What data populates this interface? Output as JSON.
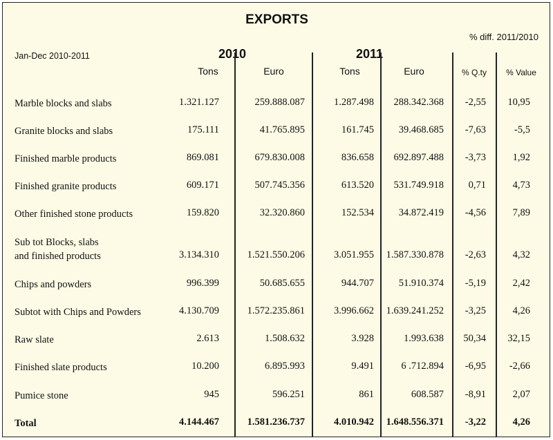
{
  "title": "EXPORTS",
  "period": "Jan-Dec 2010-2011",
  "pct_title": "% diff. 2011/2010",
  "years": [
    "2010",
    "2011"
  ],
  "columns": [
    "Tons",
    "Euro",
    "Tons",
    "Euro",
    "% Q.ty",
    "% Value"
  ],
  "rows": [
    {
      "label": [
        "Marble blocks and slabs"
      ],
      "values": [
        "1.321.127",
        "259.888.087",
        "1.287.498",
        "288.342.368",
        "-2,55",
        "10,95"
      ]
    },
    {
      "label": [
        "Granite blocks and slabs"
      ],
      "values": [
        "175.111",
        "41.765.895",
        "161.745",
        "39.468.685",
        "-7,63",
        "-5,5"
      ]
    },
    {
      "label": [
        "Finished marble products"
      ],
      "values": [
        "869.081",
        "679.830.008",
        "836.658",
        "692.897.488",
        "-3,73",
        "1,92"
      ]
    },
    {
      "label": [
        "Finished granite products"
      ],
      "values": [
        "609.171",
        "507.745.356",
        "613.520",
        "531.749.918",
        "0,71",
        "4,73"
      ]
    },
    {
      "label": [
        "Other finished stone products"
      ],
      "values": [
        "159.820",
        "32.320.860",
        "152.534",
        "34.872.419",
        "-4,56",
        "7,89"
      ]
    },
    {
      "label": [
        "Sub tot Blocks, slabs",
        "and finished products"
      ],
      "values": [
        "3.134.310",
        "1.521.550.206",
        "3.051.955",
        "1.587.330.878",
        "-2,63",
        "4,32"
      ]
    },
    {
      "label": [
        "Chips and  powders"
      ],
      "values": [
        "996.399",
        "50.685.655",
        "944.707",
        "51.910.374",
        "-5,19",
        "2,42"
      ]
    },
    {
      "label": [
        "Subtot with Chips and Powders"
      ],
      "values": [
        "4.130.709",
        "1.572.235.861",
        "3.996.662",
        "1.639.241.252",
        "-3,25",
        "4,26"
      ]
    },
    {
      "label": [
        "Raw slate"
      ],
      "values": [
        "2.613",
        "1.508.632",
        "3.928",
        "1.993.638",
        "50,34",
        "32,15"
      ]
    },
    {
      "label": [
        "Finished slate products"
      ],
      "values": [
        "10.200",
        "6.895.993",
        "9.491",
        "6 .712.894",
        "-6,95",
        "-2,66"
      ]
    },
    {
      "label": [
        "Pumice stone"
      ],
      "values": [
        "945",
        "596.251",
        "861",
        "608.587",
        "-8,91",
        "2,07"
      ]
    },
    {
      "label": [
        "Total"
      ],
      "values": [
        "4.144.467",
        "1.581.236.737",
        "4.010.942",
        "1.648.556.371",
        "-3,22",
        "4,26"
      ],
      "bold": true
    }
  ]
}
